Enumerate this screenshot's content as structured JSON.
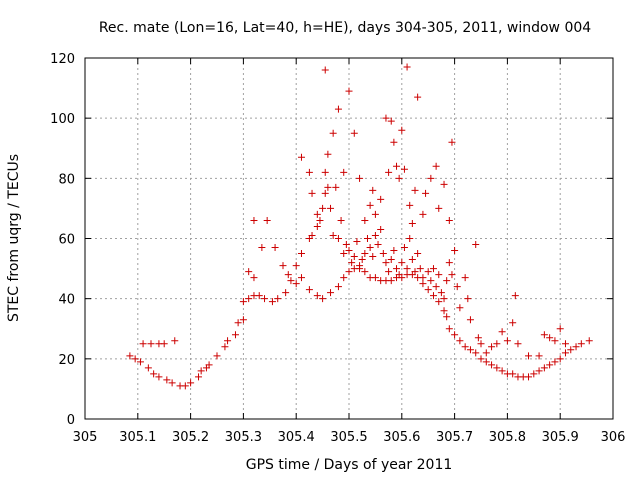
{
  "chart_data": {
    "type": "scatter",
    "title": "Rec. mate (Lon=16, Lat=40, h=HE), days 304-305, 2011, window 004",
    "xlabel": "GPS time / Days of year 2011",
    "ylabel": "STEC from uqrg / TECUs",
    "xlim": [
      305,
      306
    ],
    "ylim": [
      0,
      120
    ],
    "x_ticks": [
      305,
      305.1,
      305.2,
      305.3,
      305.4,
      305.5,
      305.6,
      305.7,
      305.8,
      305.9,
      306
    ],
    "x_tick_labels": [
      "305",
      "305.1",
      "305.2",
      "305.3",
      "305.4",
      "305.5",
      "305.6",
      "305.7",
      "305.8",
      "305.9",
      "306"
    ],
    "y_ticks": [
      0,
      20,
      40,
      60,
      80,
      100,
      120
    ],
    "y_tick_labels": [
      "0",
      "20",
      "40",
      "60",
      "80",
      "100",
      "120"
    ],
    "grid": true,
    "marker": "+",
    "color": "#cc0000",
    "points": [
      [
        305.085,
        21
      ],
      [
        305.095,
        20
      ],
      [
        305.105,
        19
      ],
      [
        305.12,
        17
      ],
      [
        305.13,
        15
      ],
      [
        305.14,
        14
      ],
      [
        305.155,
        13
      ],
      [
        305.165,
        12
      ],
      [
        305.18,
        11
      ],
      [
        305.19,
        11
      ],
      [
        305.2,
        12
      ],
      [
        305.215,
        14
      ],
      [
        305.22,
        16
      ],
      [
        305.23,
        17
      ],
      [
        305.235,
        18
      ],
      [
        305.25,
        21
      ],
      [
        305.265,
        24
      ],
      [
        305.27,
        26
      ],
      [
        305.285,
        28
      ],
      [
        305.29,
        32
      ],
      [
        305.3,
        33
      ],
      [
        305.3,
        39
      ],
      [
        305.31,
        40
      ],
      [
        305.32,
        41
      ],
      [
        305.33,
        41
      ],
      [
        305.34,
        40
      ],
      [
        305.355,
        39
      ],
      [
        305.365,
        40
      ],
      [
        305.38,
        42
      ],
      [
        305.39,
        46
      ],
      [
        305.4,
        45
      ],
      [
        305.41,
        47
      ],
      [
        305.425,
        43
      ],
      [
        305.44,
        41
      ],
      [
        305.45,
        40
      ],
      [
        305.465,
        42
      ],
      [
        305.48,
        44
      ],
      [
        305.49,
        47
      ],
      [
        305.5,
        49
      ],
      [
        305.51,
        50
      ],
      [
        305.52,
        50
      ],
      [
        305.53,
        49
      ],
      [
        305.54,
        47
      ],
      [
        305.55,
        47
      ],
      [
        305.56,
        46
      ],
      [
        305.57,
        46
      ],
      [
        305.58,
        46
      ],
      [
        305.59,
        47
      ],
      [
        305.6,
        47
      ],
      [
        305.61,
        48
      ],
      [
        305.62,
        48
      ],
      [
        305.63,
        47
      ],
      [
        305.64,
        45
      ],
      [
        305.65,
        43
      ],
      [
        305.66,
        41
      ],
      [
        305.67,
        39
      ],
      [
        305.68,
        36
      ],
      [
        305.685,
        34
      ],
      [
        305.69,
        30
      ],
      [
        305.7,
        28
      ],
      [
        305.71,
        26
      ],
      [
        305.72,
        24
      ],
      [
        305.73,
        23
      ],
      [
        305.74,
        22
      ],
      [
        305.75,
        20
      ],
      [
        305.76,
        19
      ],
      [
        305.77,
        18
      ],
      [
        305.78,
        17
      ],
      [
        305.79,
        16
      ],
      [
        305.8,
        15
      ],
      [
        305.81,
        15
      ],
      [
        305.82,
        14
      ],
      [
        305.83,
        14
      ],
      [
        305.84,
        14
      ],
      [
        305.85,
        15
      ],
      [
        305.86,
        16
      ],
      [
        305.87,
        17
      ],
      [
        305.88,
        18
      ],
      [
        305.89,
        19
      ],
      [
        305.9,
        20
      ],
      [
        305.91,
        22
      ],
      [
        305.92,
        23
      ],
      [
        305.93,
        24
      ],
      [
        305.94,
        25
      ],
      [
        305.955,
        26
      ],
      [
        305.11,
        25
      ],
      [
        305.125,
        25
      ],
      [
        305.14,
        25
      ],
      [
        305.15,
        25
      ],
      [
        305.17,
        26
      ],
      [
        305.31,
        49
      ],
      [
        305.32,
        47
      ],
      [
        305.335,
        57
      ],
      [
        305.345,
        66
      ],
      [
        305.32,
        66
      ],
      [
        305.36,
        57
      ],
      [
        305.375,
        51
      ],
      [
        305.385,
        48
      ],
      [
        305.4,
        51
      ],
      [
        305.41,
        55
      ],
      [
        305.425,
        60
      ],
      [
        305.43,
        61
      ],
      [
        305.44,
        64
      ],
      [
        305.445,
        66
      ],
      [
        305.45,
        70
      ],
      [
        305.455,
        75
      ],
      [
        305.46,
        77
      ],
      [
        305.47,
        61
      ],
      [
        305.48,
        60
      ],
      [
        305.485,
        66
      ],
      [
        305.49,
        55
      ],
      [
        305.495,
        58
      ],
      [
        305.5,
        56
      ],
      [
        305.505,
        52
      ],
      [
        305.51,
        54
      ],
      [
        305.515,
        59
      ],
      [
        305.52,
        51
      ],
      [
        305.525,
        53
      ],
      [
        305.53,
        55
      ],
      [
        305.535,
        60
      ],
      [
        305.54,
        57
      ],
      [
        305.545,
        54
      ],
      [
        305.55,
        61
      ],
      [
        305.555,
        58
      ],
      [
        305.56,
        63
      ],
      [
        305.565,
        55
      ],
      [
        305.57,
        52
      ],
      [
        305.575,
        49
      ],
      [
        305.58,
        53
      ],
      [
        305.585,
        56
      ],
      [
        305.59,
        50
      ],
      [
        305.595,
        48
      ],
      [
        305.6,
        52
      ],
      [
        305.605,
        57
      ],
      [
        305.61,
        50
      ],
      [
        305.615,
        60
      ],
      [
        305.62,
        53
      ],
      [
        305.625,
        49
      ],
      [
        305.63,
        55
      ],
      [
        305.635,
        50
      ],
      [
        305.64,
        47
      ],
      [
        305.65,
        49
      ],
      [
        305.655,
        46
      ],
      [
        305.66,
        50
      ],
      [
        305.665,
        44
      ],
      [
        305.67,
        48
      ],
      [
        305.675,
        42
      ],
      [
        305.68,
        40
      ],
      [
        305.685,
        46
      ],
      [
        305.69,
        52
      ],
      [
        305.695,
        48
      ],
      [
        305.7,
        56
      ],
      [
        305.705,
        44
      ],
      [
        305.71,
        37
      ],
      [
        305.72,
        47
      ],
      [
        305.725,
        40
      ],
      [
        305.73,
        33
      ],
      [
        305.74,
        58
      ],
      [
        305.745,
        27
      ],
      [
        305.75,
        25
      ],
      [
        305.76,
        22
      ],
      [
        305.77,
        24
      ],
      [
        305.78,
        25
      ],
      [
        305.79,
        29
      ],
      [
        305.8,
        26
      ],
      [
        305.81,
        32
      ],
      [
        305.815,
        41
      ],
      [
        305.82,
        25
      ],
      [
        305.84,
        21
      ],
      [
        305.86,
        21
      ],
      [
        305.87,
        28
      ],
      [
        305.88,
        27
      ],
      [
        305.89,
        26
      ],
      [
        305.9,
        30
      ],
      [
        305.91,
        25
      ],
      [
        305.41,
        87
      ],
      [
        305.425,
        82
      ],
      [
        305.43,
        75
      ],
      [
        305.44,
        68
      ],
      [
        305.455,
        82
      ],
      [
        305.46,
        88
      ],
      [
        305.465,
        70
      ],
      [
        305.47,
        95
      ],
      [
        305.475,
        77
      ],
      [
        305.48,
        103
      ],
      [
        305.455,
        116
      ],
      [
        305.49,
        82
      ],
      [
        305.5,
        109
      ],
      [
        305.51,
        95
      ],
      [
        305.52,
        80
      ],
      [
        305.53,
        66
      ],
      [
        305.54,
        71
      ],
      [
        305.545,
        76
      ],
      [
        305.55,
        68
      ],
      [
        305.56,
        73
      ],
      [
        305.57,
        100
      ],
      [
        305.575,
        82
      ],
      [
        305.58,
        99
      ],
      [
        305.585,
        92
      ],
      [
        305.59,
        84
      ],
      [
        305.595,
        80
      ],
      [
        305.6,
        96
      ],
      [
        305.605,
        83
      ],
      [
        305.61,
        117
      ],
      [
        305.615,
        71
      ],
      [
        305.62,
        65
      ],
      [
        305.625,
        76
      ],
      [
        305.63,
        107
      ],
      [
        305.64,
        68
      ],
      [
        305.645,
        75
      ],
      [
        305.655,
        80
      ],
      [
        305.665,
        84
      ],
      [
        305.67,
        70
      ],
      [
        305.68,
        78
      ],
      [
        305.69,
        66
      ],
      [
        305.695,
        92
      ]
    ]
  }
}
